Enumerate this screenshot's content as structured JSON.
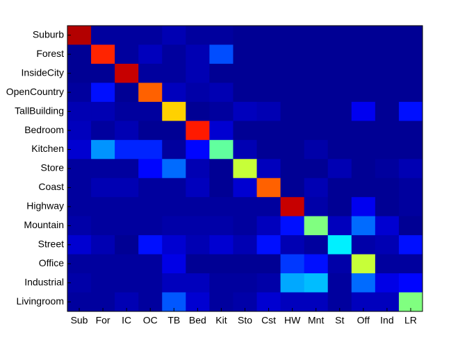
{
  "chart_data": {
    "type": "heatmap",
    "colormap": "jet",
    "x_categories": [
      "Sub",
      "For",
      "IC",
      "OC",
      "TB",
      "Bed",
      "Kit",
      "Sto",
      "Cst",
      "HW",
      "Mnt",
      "St",
      "Off",
      "Ind",
      "LR"
    ],
    "y_categories": [
      "Suburb",
      "Forest",
      "InsideCity",
      "OpenCountry",
      "TallBuilding",
      "Bedroom",
      "Kitchen",
      "Store",
      "Coast",
      "Highway",
      "Mountain",
      "Street",
      "Office",
      "Industrial",
      "Livingroom"
    ],
    "values": [
      [
        0.95,
        0.03,
        0.03,
        0.03,
        0.05,
        0.03,
        0.03,
        0.02,
        0.02,
        0.02,
        0.02,
        0.02,
        0.02,
        0.02,
        0.02
      ],
      [
        0.02,
        0.84,
        0.03,
        0.06,
        0.03,
        0.05,
        0.2,
        0.02,
        0.02,
        0.02,
        0.02,
        0.02,
        0.02,
        0.02,
        0.02
      ],
      [
        0.02,
        0.02,
        0.93,
        0.03,
        0.03,
        0.05,
        0.02,
        0.02,
        0.02,
        0.02,
        0.02,
        0.02,
        0.02,
        0.02,
        0.02
      ],
      [
        0.03,
        0.14,
        0.02,
        0.78,
        0.06,
        0.04,
        0.05,
        0.02,
        0.02,
        0.02,
        0.02,
        0.02,
        0.02,
        0.02,
        0.02
      ],
      [
        0.05,
        0.05,
        0.03,
        0.03,
        0.67,
        0.02,
        0.03,
        0.06,
        0.05,
        0.02,
        0.02,
        0.02,
        0.11,
        0.02,
        0.14
      ],
      [
        0.06,
        0.03,
        0.05,
        0.02,
        0.02,
        0.85,
        0.08,
        0.02,
        0.02,
        0.02,
        0.02,
        0.02,
        0.02,
        0.02,
        0.02
      ],
      [
        0.08,
        0.27,
        0.16,
        0.16,
        0.03,
        0.13,
        0.47,
        0.05,
        0.02,
        0.02,
        0.04,
        0.02,
        0.02,
        0.02,
        0.02
      ],
      [
        0.03,
        0.03,
        0.03,
        0.13,
        0.23,
        0.05,
        0.02,
        0.57,
        0.06,
        0.02,
        0.02,
        0.05,
        0.02,
        0.03,
        0.05
      ],
      [
        0.03,
        0.05,
        0.05,
        0.03,
        0.03,
        0.06,
        0.02,
        0.08,
        0.78,
        0.02,
        0.05,
        0.02,
        0.02,
        0.02,
        0.03
      ],
      [
        0.03,
        0.03,
        0.03,
        0.03,
        0.03,
        0.03,
        0.03,
        0.03,
        0.03,
        0.93,
        0.04,
        0.02,
        0.11,
        0.02,
        0.03
      ],
      [
        0.04,
        0.03,
        0.03,
        0.03,
        0.04,
        0.04,
        0.04,
        0.03,
        0.06,
        0.14,
        0.5,
        0.06,
        0.23,
        0.08,
        0.02
      ],
      [
        0.08,
        0.05,
        0.02,
        0.14,
        0.08,
        0.05,
        0.08,
        0.05,
        0.14,
        0.05,
        0.03,
        0.36,
        0.04,
        0.05,
        0.14
      ],
      [
        0.03,
        0.03,
        0.03,
        0.03,
        0.1,
        0.02,
        0.02,
        0.02,
        0.02,
        0.18,
        0.14,
        0.04,
        0.57,
        0.03,
        0.03
      ],
      [
        0.04,
        0.03,
        0.03,
        0.03,
        0.06,
        0.06,
        0.03,
        0.03,
        0.04,
        0.29,
        0.31,
        0.03,
        0.23,
        0.1,
        0.13
      ],
      [
        0.03,
        0.03,
        0.05,
        0.03,
        0.21,
        0.08,
        0.03,
        0.04,
        0.08,
        0.06,
        0.06,
        0.03,
        0.06,
        0.06,
        0.5
      ]
    ]
  }
}
